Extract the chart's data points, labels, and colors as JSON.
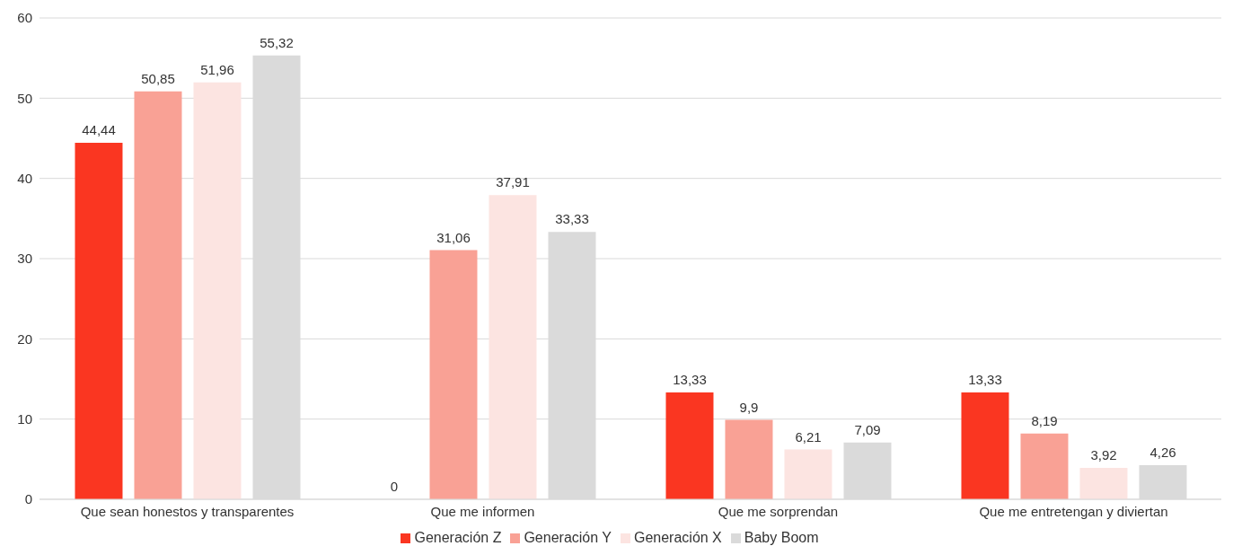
{
  "chart_data": {
    "type": "bar",
    "categories": [
      "Que sean honestos y transparentes",
      "Que me informen",
      "Que me sorprendan",
      "Que me entretengan y diviertan"
    ],
    "series": [
      {
        "name": "Generación Z",
        "color": "#fa3621",
        "values": [
          44.44,
          0,
          13.33,
          13.33
        ],
        "value_labels": [
          "44,44",
          "0",
          "13,33",
          "13,33"
        ]
      },
      {
        "name": "Generación Y",
        "color": "#f9a195",
        "values": [
          50.85,
          31.06,
          9.9,
          8.19
        ],
        "value_labels": [
          "50,85",
          "31,06",
          "9,9",
          "8,19"
        ]
      },
      {
        "name": "Generación X",
        "color": "#fce4e1",
        "values": [
          51.96,
          37.91,
          6.21,
          3.92
        ],
        "value_labels": [
          "51,96",
          "37,91",
          "6,21",
          "3,92"
        ]
      },
      {
        "name": "Baby Boom",
        "color": "#dadada",
        "values": [
          55.32,
          33.33,
          7.09,
          4.26
        ],
        "value_labels": [
          "55,32",
          "33,33",
          "7,09",
          "4,26"
        ]
      }
    ],
    "ylim": [
      0,
      60
    ],
    "yticks": [
      0,
      10,
      20,
      30,
      40,
      50,
      60
    ],
    "grid": "y",
    "legend": "bottom"
  }
}
